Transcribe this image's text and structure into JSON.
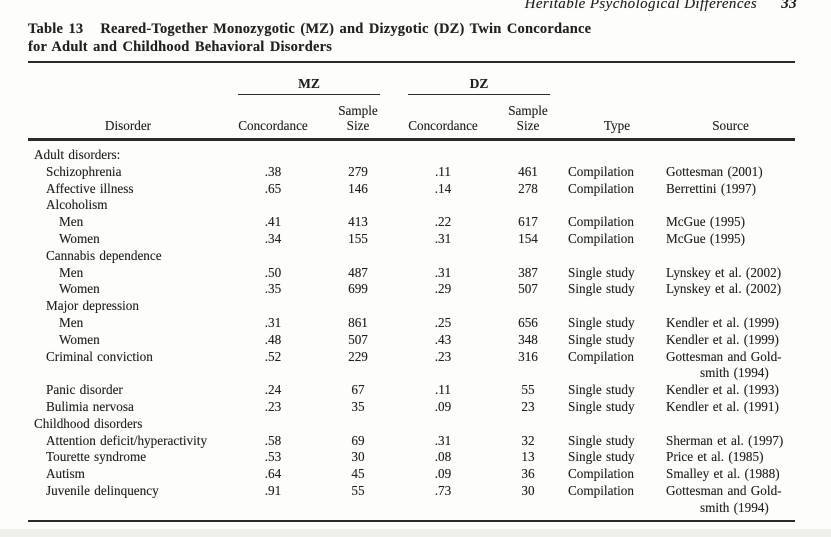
{
  "page": {
    "running_head": "Heritable Psychological Differences",
    "page_number": "33"
  },
  "colors": {
    "ink": "#222222",
    "paper": "#fdfdfb",
    "rule": "#2b2b2b"
  },
  "table": {
    "label": "Table 13",
    "title_line1": "Reared-Together Monozygotic (MZ) and Dizygotic (DZ) Twin Concordance",
    "title_line2": "for Adult and Childhood Behavioral Disorders",
    "headers": {
      "group_mz": "MZ",
      "group_dz": "DZ",
      "disorder": "Disorder",
      "concordance": "Concordance",
      "sample": "Sample",
      "size": "Size",
      "type": "Type",
      "source": "Source"
    },
    "rows": [
      {
        "indent": 0,
        "disorder": "Adult disorders:",
        "mz_concordance": "",
        "mz_n": "",
        "dz_concordance": "",
        "dz_n": "",
        "type": "",
        "source": []
      },
      {
        "indent": 1,
        "disorder": "Schizophrenia",
        "mz_concordance": ".38",
        "mz_n": "279",
        "dz_concordance": ".11",
        "dz_n": "461",
        "type": "Compilation",
        "source": [
          "Gottesman (2001)"
        ]
      },
      {
        "indent": 1,
        "disorder": "Affective illness",
        "mz_concordance": ".65",
        "mz_n": "146",
        "dz_concordance": ".14",
        "dz_n": "278",
        "type": "Compilation",
        "source": [
          "Berrettini (1997)"
        ]
      },
      {
        "indent": 1,
        "disorder": "Alcoholism",
        "mz_concordance": "",
        "mz_n": "",
        "dz_concordance": "",
        "dz_n": "",
        "type": "",
        "source": []
      },
      {
        "indent": 2,
        "disorder": "Men",
        "mz_concordance": ".41",
        "mz_n": "413",
        "dz_concordance": ".22",
        "dz_n": "617",
        "type": "Compilation",
        "source": [
          "McGue (1995)"
        ]
      },
      {
        "indent": 2,
        "disorder": "Women",
        "mz_concordance": ".34",
        "mz_n": "155",
        "dz_concordance": ".31",
        "dz_n": "154",
        "type": "Compilation",
        "source": [
          "McGue (1995)"
        ]
      },
      {
        "indent": 1,
        "disorder": "Cannabis dependence",
        "mz_concordance": "",
        "mz_n": "",
        "dz_concordance": "",
        "dz_n": "",
        "type": "",
        "source": []
      },
      {
        "indent": 2,
        "disorder": "Men",
        "mz_concordance": ".50",
        "mz_n": "487",
        "dz_concordance": ".31",
        "dz_n": "387",
        "type": "Single study",
        "source": [
          "Lynskey et al. (2002)"
        ]
      },
      {
        "indent": 2,
        "disorder": "Women",
        "mz_concordance": ".35",
        "mz_n": "699",
        "dz_concordance": ".29",
        "dz_n": "507",
        "type": "Single study",
        "source": [
          "Lynskey et al. (2002)"
        ]
      },
      {
        "indent": 1,
        "disorder": "Major depression",
        "mz_concordance": "",
        "mz_n": "",
        "dz_concordance": "",
        "dz_n": "",
        "type": "",
        "source": []
      },
      {
        "indent": 2,
        "disorder": "Men",
        "mz_concordance": ".31",
        "mz_n": "861",
        "dz_concordance": ".25",
        "dz_n": "656",
        "type": "Single study",
        "source": [
          "Kendler et al. (1999)"
        ]
      },
      {
        "indent": 2,
        "disorder": "Women",
        "mz_concordance": ".48",
        "mz_n": "507",
        "dz_concordance": ".43",
        "dz_n": "348",
        "type": "Single study",
        "source": [
          "Kendler et al. (1999)"
        ]
      },
      {
        "indent": 1,
        "disorder": "Criminal conviction",
        "mz_concordance": ".52",
        "mz_n": "229",
        "dz_concordance": ".23",
        "dz_n": "316",
        "type": "Compilation",
        "source": [
          "Gottesman and Gold-",
          "smith (1994)"
        ]
      },
      {
        "indent": 1,
        "disorder": "Panic disorder",
        "mz_concordance": ".24",
        "mz_n": "67",
        "dz_concordance": ".11",
        "dz_n": "55",
        "type": "Single study",
        "source": [
          "Kendler et al. (1993)"
        ]
      },
      {
        "indent": 1,
        "disorder": "Bulimia nervosa",
        "mz_concordance": ".23",
        "mz_n": "35",
        "dz_concordance": ".09",
        "dz_n": "23",
        "type": "Single study",
        "source": [
          "Kendler et al. (1991)"
        ]
      },
      {
        "indent": 0,
        "disorder": "Childhood disorders",
        "mz_concordance": "",
        "mz_n": "",
        "dz_concordance": "",
        "dz_n": "",
        "type": "",
        "source": []
      },
      {
        "indent": 1,
        "disorder": "Attention deficit/hyperactivity",
        "mz_concordance": ".58",
        "mz_n": "69",
        "dz_concordance": ".31",
        "dz_n": "32",
        "type": "Single study",
        "source": [
          "Sherman et al. (1997)"
        ]
      },
      {
        "indent": 1,
        "disorder": "Tourette syndrome",
        "mz_concordance": ".53",
        "mz_n": "30",
        "dz_concordance": ".08",
        "dz_n": "13",
        "type": "Single study",
        "source": [
          "Price et al. (1985)"
        ]
      },
      {
        "indent": 1,
        "disorder": "Autism",
        "mz_concordance": ".64",
        "mz_n": "45",
        "dz_concordance": ".09",
        "dz_n": "36",
        "type": "Compilation",
        "source": [
          "Smalley et al. (1988)"
        ]
      },
      {
        "indent": 1,
        "disorder": "Juvenile delinquency",
        "mz_concordance": ".91",
        "mz_n": "55",
        "dz_concordance": ".73",
        "dz_n": "30",
        "type": "Compilation",
        "source": [
          "Gottesman and Gold-",
          "smith (1994)"
        ]
      }
    ]
  }
}
